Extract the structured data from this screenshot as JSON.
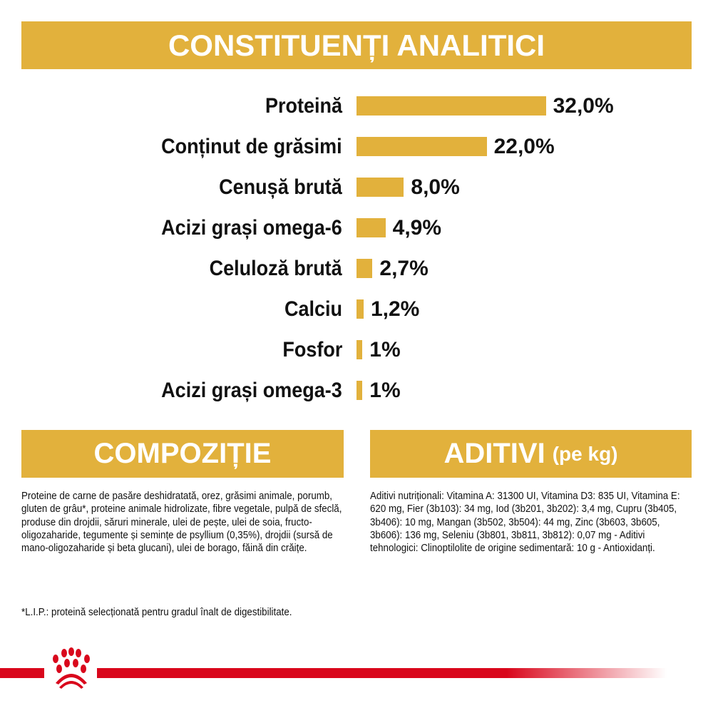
{
  "header": {
    "title": "CONSTITUENȚI ANALITICI"
  },
  "colors": {
    "accent": "#E2B13C",
    "brand_red": "#D9071C",
    "text": "#111111"
  },
  "chart_data": {
    "type": "bar",
    "orientation": "horizontal",
    "title": "CONSTITUENȚI ANALITICI",
    "categories": [
      "Proteină",
      "Conținut de grăsimi",
      "Cenușă brută",
      "Acizi grași omega-6",
      "Celuloză brută",
      "Calciu",
      "Fosfor",
      "Acizi grași omega-3"
    ],
    "values": [
      32.0,
      22.0,
      8.0,
      4.9,
      2.7,
      1.2,
      1,
      1
    ],
    "value_labels": [
      "32,0%",
      "22,0%",
      "8,0%",
      "4,9%",
      "2,7%",
      "1,2%",
      "1%",
      "1%"
    ],
    "unit": "%",
    "grid": false,
    "bar_color": "#E2B13C"
  },
  "composition": {
    "title": "COMPOZIȚIE",
    "text": "Proteine de carne de pasăre deshidratată, orez, grăsimi animale, porumb, gluten de grâu*, proteine animale hidrolizate, fibre vegetale, pulpă de sfeclă, produse din drojdii, săruri minerale, ulei de pește, ulei de soia, fructo-oligozaharide, tegumente și semințe de psyllium (0,35%), drojdii (sursă de mano-oligozaharide și beta glucani), ulei de borago, făină din crăițe.",
    "note": "*L.I.P.: proteină selecționată pentru gradul înalt de digestibilitate."
  },
  "additives": {
    "title": "ADITIVI",
    "subtitle": "(pe kg)",
    "text": "Aditivi nutriționali: Vitamina A: 31300 UI, Vitamina D3: 835 UI, Vitamina E: 620 mg, Fier (3b103): 34 mg, Iod (3b201, 3b202): 3,4 mg, Cupru (3b405, 3b406): 10 mg, Mangan (3b502, 3b504): 44 mg, Zinc (3b603, 3b605, 3b606): 136 mg, Seleniu (3b801, 3b811, 3b812): 0,07 mg - Aditivi tehnologici: Clinoptilolite de origine sedimentară: 10 g - Antioxidanți."
  },
  "footer": {
    "logo_icon": "royal-canin-crown-icon"
  }
}
